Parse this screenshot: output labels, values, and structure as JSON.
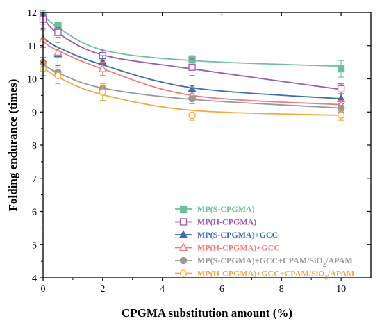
{
  "chart_data": {
    "type": "line",
    "title": "",
    "xlabel": "CPGMA substitution amount (%)",
    "ylabel": "Folding endurance (times)",
    "xlim": [
      0,
      11
    ],
    "ylim": [
      4,
      12
    ],
    "xticks": [
      0,
      2,
      4,
      6,
      8,
      10
    ],
    "yticks": [
      4,
      5,
      6,
      7,
      8,
      9,
      10,
      11,
      12
    ],
    "xtick_labels": [
      "0",
      "2",
      "4",
      "6",
      "8",
      "10"
    ],
    "ytick_labels": [
      "4",
      "5",
      "6",
      "7",
      "8",
      "9",
      "10",
      "11",
      "12"
    ],
    "legend_position": "bottom-right",
    "grid": false,
    "series": [
      {
        "name": "MP(S-CPGMA)",
        "label_parts": [
          {
            "t": "MP(S-CPGMA)"
          }
        ],
        "color": "#6fbf9b",
        "marker": "square-filled",
        "x": [
          0,
          0.5,
          2,
          5,
          10
        ],
        "y": [
          11.9,
          11.6,
          10.7,
          10.6,
          10.3
        ],
        "err": [
          0.15,
          0.2,
          0.15,
          0.1,
          0.25
        ],
        "fit": [
          11.95,
          11.55,
          10.87,
          10.55,
          10.38
        ]
      },
      {
        "name": "MP(H-CPGMA)",
        "label_parts": [
          {
            "t": "MP(H-CPGMA)"
          }
        ],
        "color": "#9b59b6",
        "marker": "square-open",
        "x": [
          0,
          0.5,
          2,
          5,
          10
        ],
        "y": [
          11.8,
          11.4,
          10.7,
          10.35,
          9.7
        ],
        "err": [
          0.15,
          0.15,
          0.2,
          0.25,
          0.15
        ],
        "fit": [
          11.85,
          11.38,
          10.72,
          10.3,
          9.68
        ]
      },
      {
        "name": "MP(S-CPGMA)+GCC",
        "label_parts": [
          {
            "t": "MP(S-CPGMA)+GCC"
          }
        ],
        "color": "#3a6fb0",
        "marker": "triangle-filled",
        "x": [
          0,
          0.5,
          2,
          5,
          10
        ],
        "y": [
          11.2,
          10.75,
          10.5,
          9.7,
          9.4
        ],
        "err": [
          0.25,
          0.35,
          0.2,
          0.1,
          0.15
        ],
        "fit": [
          11.25,
          10.95,
          10.42,
          9.73,
          9.4
        ]
      },
      {
        "name": "MP(H-CPGMA)+GCC",
        "label_parts": [
          {
            "t": "MP(H-CPGMA)+GCC"
          }
        ],
        "color": "#f07a7a",
        "marker": "triangle-open",
        "x": [
          0,
          0.5,
          2,
          5,
          10
        ],
        "y": [
          11.2,
          10.8,
          10.3,
          9.5,
          9.2
        ],
        "err": [
          0.3,
          0.15,
          0.2,
          0.25,
          0.15
        ],
        "fit": [
          11.12,
          10.85,
          10.3,
          9.5,
          9.22
        ]
      },
      {
        "name": "MP(S-CPGMA)+GCC+CPAM/SiO2/APAM",
        "label_parts": [
          {
            "t": "MP(S-CPGMA)+GCC+CPAM/SiO"
          },
          {
            "t": "2",
            "sub": true
          },
          {
            "t": "/APAM"
          }
        ],
        "color": "#999999",
        "marker": "circle-filled",
        "x": [
          0,
          0.5,
          2,
          5,
          10
        ],
        "y": [
          10.5,
          10.2,
          9.7,
          9.4,
          9.1
        ],
        "err": [
          0.15,
          0.15,
          0.1,
          0.15,
          0.1
        ],
        "fit": [
          10.45,
          10.18,
          9.72,
          9.38,
          9.12
        ]
      },
      {
        "name": "MP(H-CPGMA)+GCC+CPAM/SiO2/APAM",
        "label_parts": [
          {
            "t": "MP(H-CPGMA)+GCC+CPAM/SiO"
          },
          {
            "t": "2",
            "sub": true
          },
          {
            "t": "/APAM"
          }
        ],
        "color": "#f4a742",
        "marker": "circle-open",
        "x": [
          0,
          0.5,
          2,
          5,
          10
        ],
        "y": [
          10.3,
          10.1,
          9.6,
          8.9,
          8.9
        ],
        "err": [
          0.2,
          0.25,
          0.25,
          0.15,
          0.15
        ],
        "fit": [
          10.35,
          10.05,
          9.52,
          9.05,
          8.9
        ]
      }
    ]
  }
}
